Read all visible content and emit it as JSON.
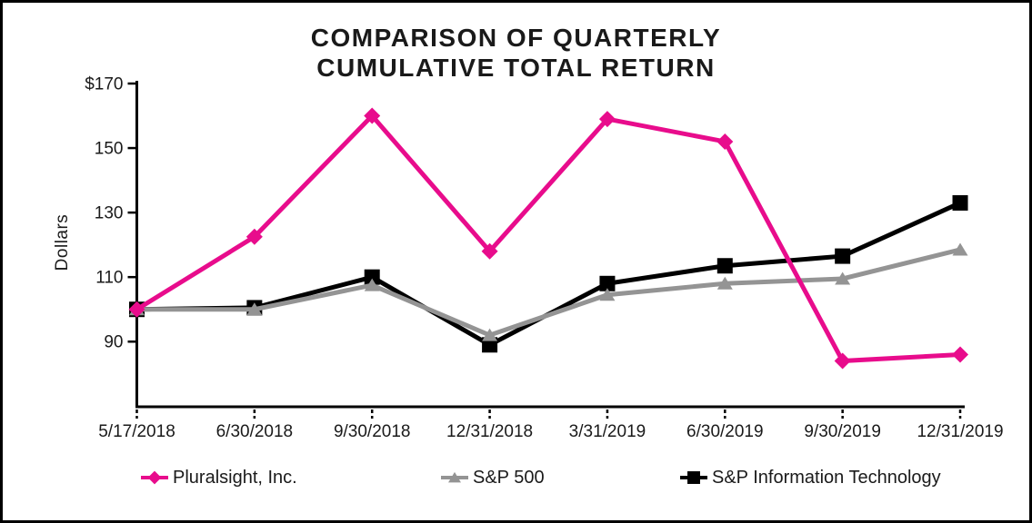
{
  "window": {
    "background": "#ffffff",
    "frame_border_color": "#000000",
    "text_color": "#1a1a1a"
  },
  "chart_data": {
    "type": "line",
    "title": "COMPARISON OF QUARTERLY CUMULATIVE TOTAL RETURN",
    "title_lines": [
      "COMPARISON OF QUARTERLY",
      "CUMULATIVE TOTAL RETURN"
    ],
    "ylabel": "Dollars",
    "xlabel": "",
    "categories": [
      "5/17/2018",
      "6/30/2018",
      "9/30/2018",
      "12/31/2018",
      "3/31/2019",
      "6/30/2019",
      "9/30/2019",
      "12/31/2019"
    ],
    "series": [
      {
        "name": "Pluralsight, Inc.",
        "color": "#E80C8C",
        "marker": "diamond",
        "values": [
          100,
          122.5,
          160,
          118,
          159,
          152,
          84,
          86
        ]
      },
      {
        "name": "S&P 500",
        "color": "#949494",
        "marker": "triangle",
        "values": [
          100,
          100,
          107.5,
          92,
          104.5,
          108,
          109.5,
          118.5
        ]
      },
      {
        "name": "S&P Information Technology",
        "color": "#000000",
        "marker": "square",
        "values": [
          100,
          100.5,
          110,
          89,
          108,
          113.5,
          116.5,
          133
        ]
      }
    ],
    "ylim": [
      70,
      170
    ],
    "yticks": [
      170,
      150,
      130,
      110,
      90
    ],
    "ytick_labels": [
      "$170",
      "150",
      "130",
      "110",
      "90"
    ],
    "grid": false,
    "legend_position": "bottom",
    "axis_color": "#000000"
  }
}
